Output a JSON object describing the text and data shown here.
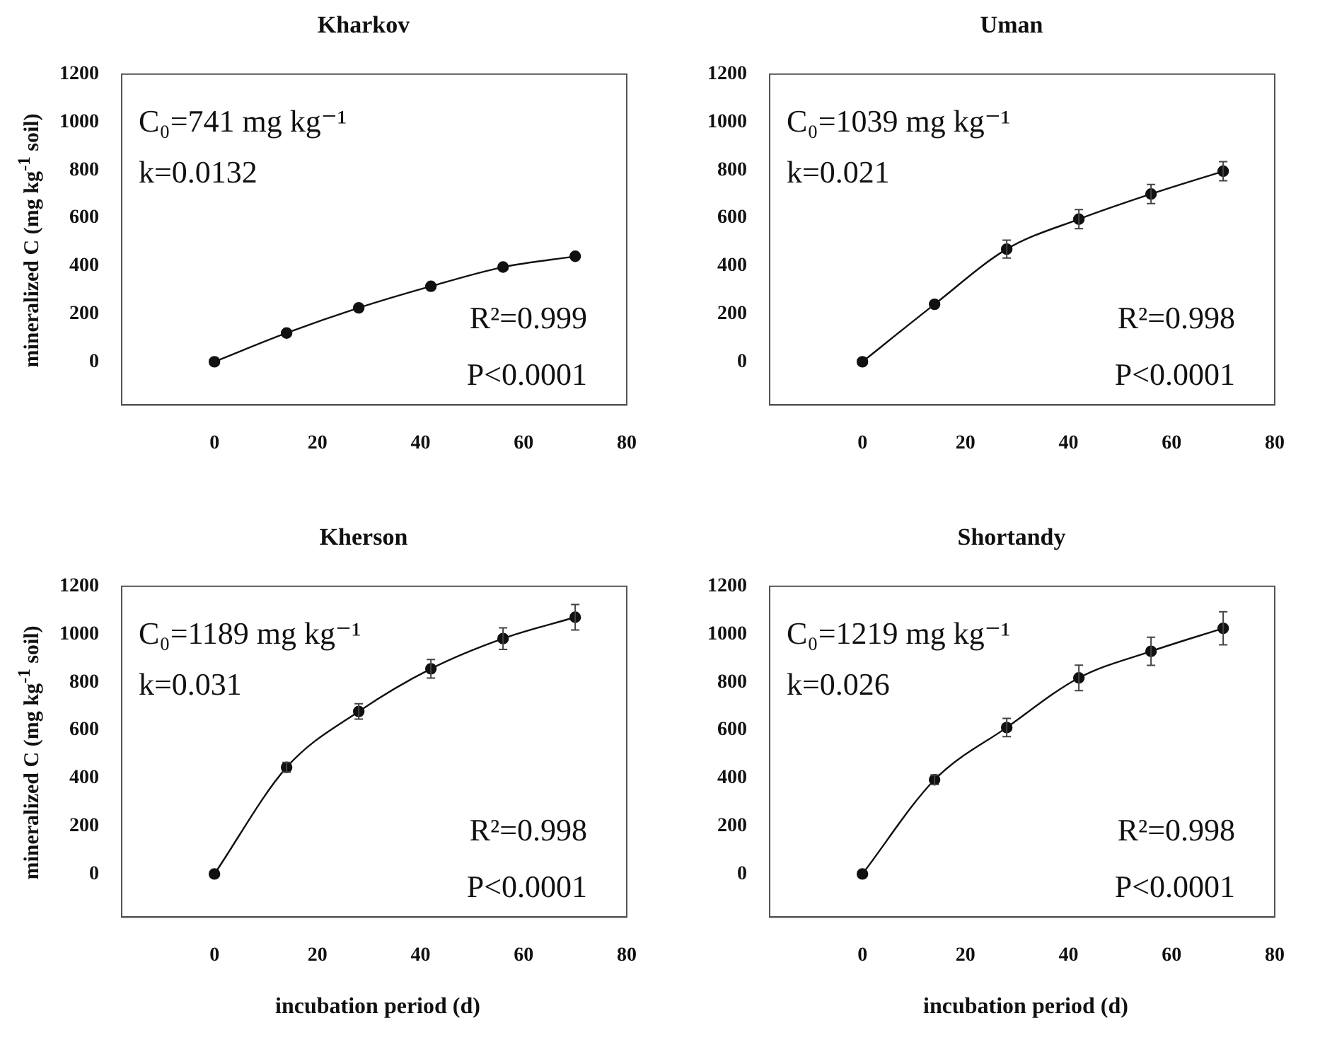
{
  "chart_data": [
    {
      "type": "line",
      "title": "Kharkov",
      "ylabel": "mineralized C (mg kg$^{-1}$ soil)",
      "x": [
        0,
        14,
        28,
        42,
        56,
        70
      ],
      "xlim": [
        -18,
        80
      ],
      "xticks": [
        0,
        20,
        40,
        60,
        80
      ],
      "ylim": [
        -180,
        1200
      ],
      "yticks": [
        0,
        200,
        400,
        600,
        800,
        1000,
        1200
      ],
      "grid": false,
      "marker": "circle",
      "line_style": "solid",
      "series": [
        {
          "color": "#111111",
          "values": [
            0,
            120,
            225,
            315,
            395,
            440
          ]
        }
      ],
      "annotations": [
        "C₀=741 mg kg⁻¹",
        "k=0.0132",
        "R²=0.999",
        "P<0.0001"
      ]
    },
    {
      "type": "line",
      "title": "Uman",
      "x": [
        0,
        14,
        28,
        42,
        56,
        70
      ],
      "xlim": [
        -18,
        80
      ],
      "xticks": [
        0,
        20,
        40,
        60,
        80
      ],
      "ylim": [
        -180,
        1200
      ],
      "yticks": [
        0,
        200,
        400,
        600,
        800,
        1000,
        1200
      ],
      "grid": false,
      "marker": "circle",
      "line_style": "solid",
      "series": [
        {
          "color": "#111111",
          "values": [
            0,
            240,
            470,
            595,
            700,
            795
          ],
          "errors": [
            null,
            null,
            37,
            40,
            40,
            40
          ]
        }
      ],
      "annotations": [
        "C₀=1039 mg kg⁻¹",
        "k=0.021",
        "R²=0.998",
        "P<0.0001"
      ]
    },
    {
      "type": "line",
      "title": "Kherson",
      "xlabel": "incubation period (d)",
      "ylabel": "mineralized C (mg kg$^{-1}$ soil)",
      "x": [
        0,
        14,
        28,
        42,
        56,
        70
      ],
      "xlim": [
        -18,
        80
      ],
      "xticks": [
        0,
        20,
        40,
        60,
        80
      ],
      "ylim": [
        -180,
        1200
      ],
      "yticks": [
        0,
        200,
        400,
        600,
        800,
        1000,
        1200
      ],
      "grid": false,
      "marker": "circle",
      "line_style": "solid",
      "series": [
        {
          "color": "#111111",
          "values": [
            0,
            445,
            678,
            856,
            982,
            1071
          ],
          "errors": [
            null,
            20,
            32,
            39,
            45,
            53
          ]
        }
      ],
      "annotations": [
        "C₀=1189 mg kg⁻¹",
        "k=0.031",
        "R²=0.998",
        "P<0.0001"
      ]
    },
    {
      "type": "line",
      "title": "Shortandy",
      "xlabel": "incubation period (d)",
      "x": [
        0,
        14,
        28,
        42,
        56,
        70
      ],
      "xlim": [
        -18,
        80
      ],
      "xticks": [
        0,
        20,
        40,
        60,
        80
      ],
      "ylim": [
        -180,
        1200
      ],
      "yticks": [
        0,
        200,
        400,
        600,
        800,
        1000,
        1200
      ],
      "grid": false,
      "marker": "circle",
      "line_style": "solid",
      "series": [
        {
          "color": "#111111",
          "values": [
            0,
            393,
            611,
            818,
            929,
            1025
          ],
          "errors": [
            null,
            20,
            38,
            53,
            59,
            69
          ]
        }
      ],
      "annotations": [
        "C₀=1219 mg kg⁻¹",
        "k=0.026",
        "R²=0.998",
        "P<0.0001"
      ]
    }
  ]
}
